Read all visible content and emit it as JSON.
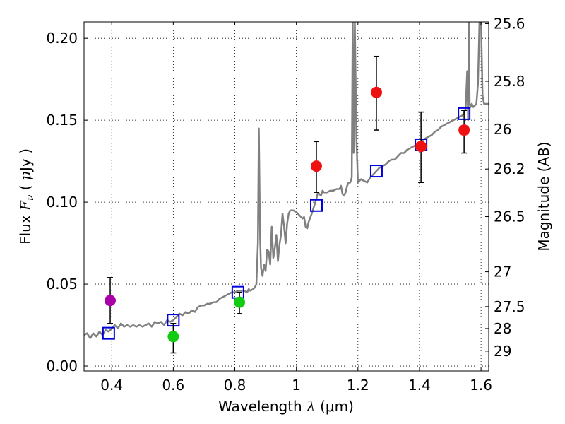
{
  "chart_data": {
    "type": "scatter",
    "xlabel": "Wavelength",
    "xlabel_symbol": "λ",
    "xlabel_unit": "(μm)",
    "ylabel": "Flux",
    "ylabel_symbol": "F",
    "ylabel_subscript": "ν",
    "ylabel_unit_open": "(",
    "ylabel_unit_mu": "μ",
    "ylabel_unit_rest": "Jy",
    "ylabel_unit_close": ")",
    "y2label": "Magnitude (AB)",
    "xlim": [
      0.31,
      1.625
    ],
    "ylim": [
      -0.003,
      0.21
    ],
    "grid": true,
    "x_ticks": [
      {
        "value": 0.4,
        "label": "0.4"
      },
      {
        "value": 0.6,
        "label": "0.6"
      },
      {
        "value": 0.8,
        "label": "0.8"
      },
      {
        "value": 1.0,
        "label": "1"
      },
      {
        "value": 1.2,
        "label": "1.2"
      },
      {
        "value": 1.4,
        "label": "1.4"
      },
      {
        "value": 1.6,
        "label": "1.6"
      }
    ],
    "y_ticks": [
      {
        "value": 0.0,
        "label": "0.00"
      },
      {
        "value": 0.05,
        "label": "0.05"
      },
      {
        "value": 0.1,
        "label": "0.10"
      },
      {
        "value": 0.15,
        "label": "0.15"
      },
      {
        "value": 0.2,
        "label": "0.20"
      }
    ],
    "magnitude_ticks": [
      {
        "mag": 25.6,
        "label": "25.6"
      },
      {
        "mag": 25.8,
        "label": "25.8"
      },
      {
        "mag": 26.0,
        "label": "26"
      },
      {
        "mag": 26.2,
        "label": "26.2"
      },
      {
        "mag": 26.5,
        "label": "26.5"
      },
      {
        "mag": 27.0,
        "label": "27"
      },
      {
        "mag": 27.5,
        "label": "27.5"
      },
      {
        "mag": 28.0,
        "label": "28"
      },
      {
        "mag": 29.0,
        "label": "29"
      }
    ],
    "series": [
      {
        "name": "model spectrum",
        "kind": "line",
        "color": "#808080",
        "points": [
          [
            0.31,
            0.019
          ],
          [
            0.32,
            0.02
          ],
          [
            0.33,
            0.017
          ],
          [
            0.34,
            0.02
          ],
          [
            0.35,
            0.018
          ],
          [
            0.36,
            0.021
          ],
          [
            0.37,
            0.019
          ],
          [
            0.38,
            0.022
          ],
          [
            0.39,
            0.021
          ],
          [
            0.4,
            0.023
          ],
          [
            0.41,
            0.025
          ],
          [
            0.42,
            0.023
          ],
          [
            0.43,
            0.026
          ],
          [
            0.44,
            0.024
          ],
          [
            0.45,
            0.025
          ],
          [
            0.46,
            0.024
          ],
          [
            0.47,
            0.025
          ],
          [
            0.48,
            0.024
          ],
          [
            0.49,
            0.025
          ],
          [
            0.5,
            0.024
          ],
          [
            0.51,
            0.025
          ],
          [
            0.52,
            0.026
          ],
          [
            0.53,
            0.024
          ],
          [
            0.54,
            0.027
          ],
          [
            0.55,
            0.026
          ],
          [
            0.56,
            0.027
          ],
          [
            0.57,
            0.025
          ],
          [
            0.58,
            0.028
          ],
          [
            0.59,
            0.027
          ],
          [
            0.6,
            0.028
          ],
          [
            0.61,
            0.03
          ],
          [
            0.62,
            0.032
          ],
          [
            0.63,
            0.031
          ],
          [
            0.64,
            0.033
          ],
          [
            0.65,
            0.032
          ],
          [
            0.66,
            0.034
          ],
          [
            0.67,
            0.033
          ],
          [
            0.68,
            0.036
          ],
          [
            0.69,
            0.037
          ],
          [
            0.7,
            0.037
          ],
          [
            0.71,
            0.038
          ],
          [
            0.72,
            0.038
          ],
          [
            0.73,
            0.039
          ],
          [
            0.74,
            0.039
          ],
          [
            0.75,
            0.041
          ],
          [
            0.76,
            0.042
          ],
          [
            0.77,
            0.043
          ],
          [
            0.78,
            0.044
          ],
          [
            0.79,
            0.045
          ],
          [
            0.8,
            0.045
          ],
          [
            0.81,
            0.046
          ],
          [
            0.82,
            0.046
          ],
          [
            0.83,
            0.046
          ],
          [
            0.84,
            0.045
          ],
          [
            0.845,
            0.047
          ],
          [
            0.85,
            0.046
          ],
          [
            0.86,
            0.047
          ],
          [
            0.865,
            0.048
          ],
          [
            0.87,
            0.05
          ],
          [
            0.875,
            0.075
          ],
          [
            0.878,
            0.145
          ],
          [
            0.882,
            0.08
          ],
          [
            0.885,
            0.06
          ],
          [
            0.89,
            0.055
          ],
          [
            0.895,
            0.062
          ],
          [
            0.9,
            0.058
          ],
          [
            0.905,
            0.071
          ],
          [
            0.91,
            0.07
          ],
          [
            0.915,
            0.062
          ],
          [
            0.92,
            0.085
          ],
          [
            0.925,
            0.066
          ],
          [
            0.93,
            0.072
          ],
          [
            0.935,
            0.08
          ],
          [
            0.94,
            0.064
          ],
          [
            0.945,
            0.074
          ],
          [
            0.95,
            0.08
          ],
          [
            0.955,
            0.093
          ],
          [
            0.96,
            0.085
          ],
          [
            0.965,
            0.075
          ],
          [
            0.97,
            0.087
          ],
          [
            0.975,
            0.093
          ],
          [
            0.98,
            0.095
          ],
          [
            0.99,
            0.095
          ],
          [
            1.0,
            0.094
          ],
          [
            1.01,
            0.092
          ],
          [
            1.02,
            0.09
          ],
          [
            1.025,
            0.091
          ],
          [
            1.03,
            0.085
          ],
          [
            1.035,
            0.084
          ],
          [
            1.04,
            0.088
          ],
          [
            1.05,
            0.093
          ],
          [
            1.06,
            0.099
          ],
          [
            1.065,
            0.102
          ],
          [
            1.07,
            0.106
          ],
          [
            1.08,
            0.104
          ],
          [
            1.085,
            0.107
          ],
          [
            1.09,
            0.106
          ],
          [
            1.1,
            0.106
          ],
          [
            1.11,
            0.107
          ],
          [
            1.12,
            0.107
          ],
          [
            1.13,
            0.108
          ],
          [
            1.14,
            0.108
          ],
          [
            1.145,
            0.11
          ],
          [
            1.15,
            0.105
          ],
          [
            1.155,
            0.104
          ],
          [
            1.16,
            0.106
          ],
          [
            1.165,
            0.11
          ],
          [
            1.17,
            0.112
          ],
          [
            1.175,
            0.112
          ],
          [
            1.18,
            0.115
          ],
          [
            1.183,
            0.21
          ],
          [
            1.186,
            0.13
          ],
          [
            1.19,
            0.21
          ],
          [
            1.195,
            0.14
          ],
          [
            1.2,
            0.112
          ],
          [
            1.21,
            0.114
          ],
          [
            1.22,
            0.113
          ],
          [
            1.23,
            0.112
          ],
          [
            1.24,
            0.115
          ],
          [
            1.25,
            0.117
          ],
          [
            1.26,
            0.119
          ],
          [
            1.27,
            0.121
          ],
          [
            1.28,
            0.122
          ],
          [
            1.29,
            0.123
          ],
          [
            1.3,
            0.125
          ],
          [
            1.31,
            0.126
          ],
          [
            1.32,
            0.126
          ],
          [
            1.33,
            0.128
          ],
          [
            1.34,
            0.13
          ],
          [
            1.35,
            0.13
          ],
          [
            1.36,
            0.132
          ],
          [
            1.37,
            0.133
          ],
          [
            1.38,
            0.134
          ],
          [
            1.39,
            0.135
          ],
          [
            1.4,
            0.136
          ],
          [
            1.41,
            0.138
          ],
          [
            1.42,
            0.139
          ],
          [
            1.43,
            0.14
          ],
          [
            1.44,
            0.141
          ],
          [
            1.45,
            0.143
          ],
          [
            1.46,
            0.144
          ],
          [
            1.47,
            0.146
          ],
          [
            1.48,
            0.147
          ],
          [
            1.49,
            0.148
          ],
          [
            1.5,
            0.149
          ],
          [
            1.51,
            0.15
          ],
          [
            1.52,
            0.151
          ],
          [
            1.53,
            0.152
          ],
          [
            1.54,
            0.153
          ],
          [
            1.545,
            0.155
          ],
          [
            1.55,
            0.157
          ],
          [
            1.555,
            0.18
          ],
          [
            1.558,
            0.15
          ],
          [
            1.56,
            0.21
          ],
          [
            1.563,
            0.16
          ],
          [
            1.566,
            0.158
          ],
          [
            1.57,
            0.16
          ],
          [
            1.575,
            0.158
          ],
          [
            1.58,
            0.159
          ],
          [
            1.585,
            0.16
          ],
          [
            1.59,
            0.172
          ],
          [
            1.595,
            0.21
          ],
          [
            1.6,
            0.21
          ],
          [
            1.605,
            0.165
          ],
          [
            1.61,
            0.16
          ],
          [
            1.625,
            0.16
          ]
        ]
      },
      {
        "name": "model photometry",
        "kind": "square",
        "color": "#0000dd",
        "points": [
          [
            0.39,
            0.02
          ],
          [
            0.6,
            0.028
          ],
          [
            0.81,
            0.045
          ],
          [
            1.065,
            0.098
          ],
          [
            1.26,
            0.119
          ],
          [
            1.405,
            0.135
          ],
          [
            1.545,
            0.154
          ]
        ]
      },
      {
        "name": "observed (purple)",
        "kind": "point",
        "color": "#aa00aa",
        "points": [
          {
            "x": 0.395,
            "y": 0.04,
            "lo": 0.026,
            "hi": 0.054
          }
        ]
      },
      {
        "name": "observed (green)",
        "kind": "point",
        "color": "#11cc11",
        "points": [
          {
            "x": 0.6,
            "y": 0.018,
            "lo": 0.008,
            "hi": 0.026
          },
          {
            "x": 0.815,
            "y": 0.039,
            "lo": 0.032,
            "hi": 0.045
          }
        ]
      },
      {
        "name": "observed (red)",
        "kind": "point",
        "color": "#ee1111",
        "points": [
          {
            "x": 1.065,
            "y": 0.122,
            "lo": 0.106,
            "hi": 0.137
          },
          {
            "x": 1.26,
            "y": 0.167,
            "lo": 0.144,
            "hi": 0.189
          },
          {
            "x": 1.405,
            "y": 0.134,
            "lo": 0.112,
            "hi": 0.155
          },
          {
            "x": 1.545,
            "y": 0.144,
            "lo": 0.13,
            "hi": 0.156
          }
        ]
      }
    ]
  }
}
